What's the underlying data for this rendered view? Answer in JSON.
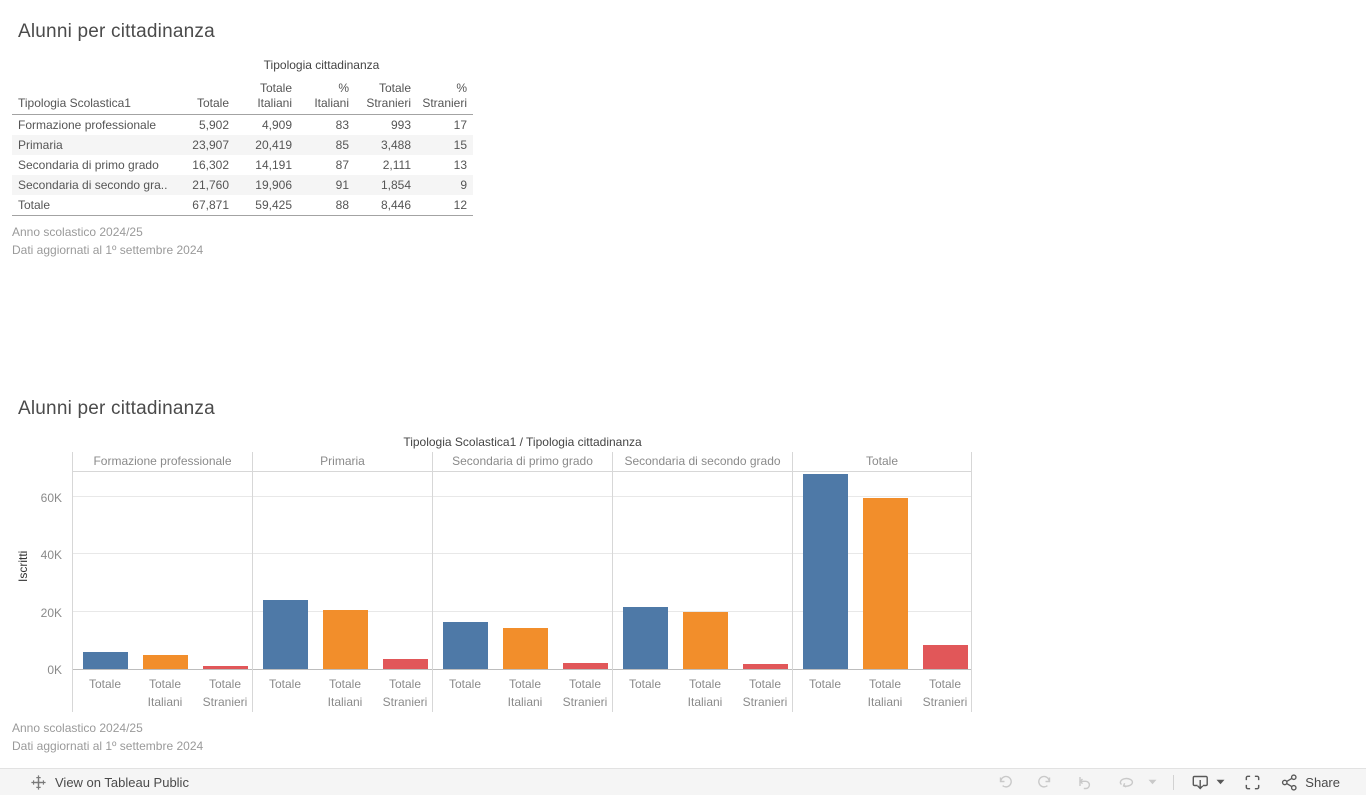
{
  "colors": {
    "blue": "#4e79a7",
    "orange": "#f28e2b",
    "red": "#e15759"
  },
  "table_view": {
    "title": "Alunni per cittadinanza",
    "spanning_header": "Tipologia cittadinanza",
    "columns": [
      "Tipologia Scolastica1",
      "Totale",
      "Totale Italiani",
      "% Italiani",
      "Totale Stranieri",
      "% Stranieri"
    ],
    "rows": [
      [
        "Formazione professionale",
        "5,902",
        "4,909",
        "83",
        "993",
        "17"
      ],
      [
        "Primaria",
        "23,907",
        "20,419",
        "85",
        "3,488",
        "15"
      ],
      [
        "Secondaria di primo grado",
        "16,302",
        "14,191",
        "87",
        "2,111",
        "13"
      ],
      [
        "Secondaria di secondo gra..",
        "21,760",
        "19,906",
        "91",
        "1,854",
        "9"
      ],
      [
        "Totale",
        "67,871",
        "59,425",
        "88",
        "8,446",
        "12"
      ]
    ],
    "notes": [
      "Anno scolastico 2024/25",
      "Dati aggiornati al 1º settembre 2024"
    ]
  },
  "chart_view": {
    "title": "Alunni per cittadinanza",
    "chart_header": "Tipologia Scolastica1  /  Tipologia cittadinanza",
    "ylabel": "Iscritti",
    "notes": [
      "Anno scolastico 2024/25",
      "Dati aggiornati al 1º settembre 2024"
    ]
  },
  "chart_data": {
    "type": "bar",
    "title": "Tipologia Scolastica1 / Tipologia cittadinanza",
    "ylabel": "Iscritti",
    "ylim": [
      0,
      69000
    ],
    "yticks": [
      0,
      20000,
      40000,
      60000
    ],
    "ytick_labels": [
      "0K",
      "20K",
      "40K",
      "60K"
    ],
    "grid": true,
    "legend": "none",
    "panels": [
      "Formazione professionale",
      "Primaria",
      "Secondaria di primo grado",
      "Secondaria di secondo grado",
      "Totale"
    ],
    "categories": [
      "Totale",
      "Totale Italiani",
      "Totale Stranieri"
    ],
    "series_colors": [
      "#4e79a7",
      "#f28e2b",
      "#e15759"
    ],
    "values": [
      [
        5902,
        4909,
        993
      ],
      [
        23907,
        20419,
        3488
      ],
      [
        16302,
        14191,
        2111
      ],
      [
        21760,
        19906,
        1854
      ],
      [
        67871,
        59425,
        8446
      ]
    ]
  },
  "toolbar": {
    "view_on_label": "View on Tableau Public",
    "share_label": "Share",
    "icons": [
      "tableau-logo",
      "undo",
      "redo",
      "revert",
      "refresh",
      "caret-down",
      "download",
      "fullscreen",
      "share"
    ]
  }
}
